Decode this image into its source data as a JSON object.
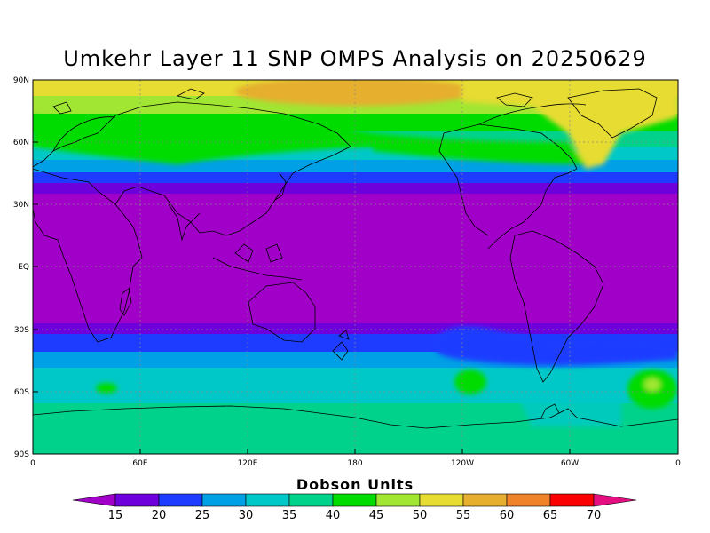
{
  "title": "Umkehr Layer 11 SNP OMPS Analysis on 20250629",
  "colorbar": {
    "title": "Dobson Units",
    "levels": [
      "15",
      "20",
      "25",
      "30",
      "35",
      "40",
      "45",
      "50",
      "55",
      "60",
      "65",
      "70"
    ],
    "colors": [
      "#a000c8",
      "#6e00dc",
      "#1e3cff",
      "#00a0e6",
      "#00c8c8",
      "#00d28c",
      "#00dc00",
      "#a0e632",
      "#e6dc32",
      "#e6af2d",
      "#f08228",
      "#fa0000",
      "#e60f82"
    ]
  },
  "axes": {
    "y_ticks": [
      "90N",
      "60N",
      "30N",
      "EQ",
      "30S",
      "60S",
      "90S"
    ],
    "x_ticks": [
      "0",
      "60E",
      "120E",
      "180",
      "120W",
      "60W",
      "0"
    ]
  },
  "map_data": {
    "projection": "cylindrical equidistant",
    "lon_range": [
      0,
      360
    ],
    "lat_range": [
      -90,
      90
    ],
    "grid": true
  }
}
